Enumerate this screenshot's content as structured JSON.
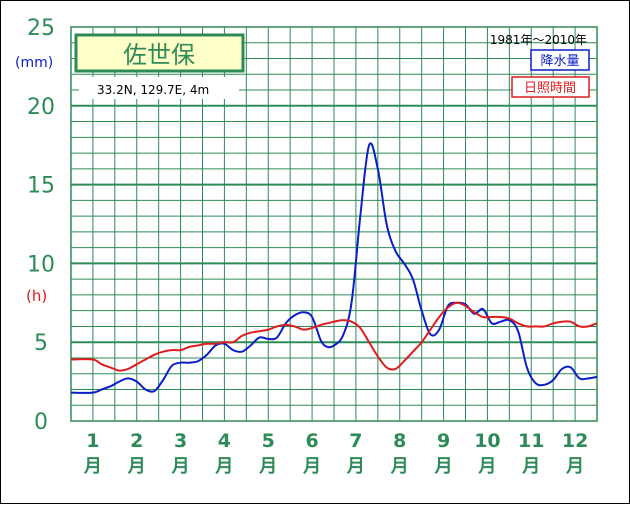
{
  "chart_data": {
    "type": "line",
    "title": "佐世保",
    "location": "33.2N,  129.7E,  4m",
    "period": "1981年〜2010年",
    "ylabel_primary": "(mm)",
    "ylabel_secondary": "(h)",
    "yticks": [
      "0",
      "5",
      "10",
      "15",
      "20",
      "25"
    ],
    "ylim": [
      0,
      25
    ],
    "grid": true,
    "legend_position": "top-right",
    "categories": [
      "1",
      "2",
      "3",
      "4",
      "5",
      "6",
      "7",
      "8",
      "9",
      "10",
      "11",
      "12"
    ],
    "month_suffix": "月",
    "colors": {
      "grid": "#2e8b57",
      "axis_text": "#2e8b57",
      "precip": "#0a1ec8",
      "sunshine": "#dc1e1e",
      "title_box_bg": "#ffffc8",
      "title_box_border": "#2e8b57"
    },
    "series": [
      {
        "name": "降水量",
        "color": "#0a1ec8",
        "x": [
          1.0,
          1.2,
          1.4,
          1.6,
          1.8,
          2.0,
          2.2,
          2.4,
          2.6,
          2.8,
          3.0,
          3.2,
          3.4,
          3.6,
          3.8,
          4.0,
          4.2,
          4.4,
          4.6,
          4.8,
          5.0,
          5.2,
          5.4,
          5.6,
          5.8,
          6.0,
          6.2,
          6.35,
          6.5,
          6.7,
          6.9,
          7.1,
          7.3,
          7.5,
          7.7,
          7.9,
          8.1,
          8.3,
          8.5,
          8.7,
          8.9,
          9.1,
          9.3,
          9.5,
          9.7,
          9.9,
          10.1,
          10.3,
          10.5,
          10.7,
          10.9,
          11.1,
          11.3,
          11.5,
          11.7,
          11.9,
          12.1,
          12.3,
          12.5
        ],
        "values": [
          1.8,
          2.0,
          2.2,
          2.5,
          2.7,
          2.5,
          2.0,
          1.9,
          2.6,
          3.5,
          3.7,
          3.7,
          3.8,
          4.2,
          4.8,
          4.9,
          4.5,
          4.4,
          4.8,
          5.3,
          5.2,
          5.3,
          6.2,
          6.7,
          6.9,
          6.6,
          5.1,
          4.7,
          4.8,
          5.4,
          7.5,
          13.0,
          17.5,
          16.0,
          12.5,
          10.8,
          10.0,
          9.0,
          7.0,
          5.5,
          5.8,
          7.3,
          7.5,
          7.4,
          6.8,
          7.1,
          6.2,
          6.3,
          6.4,
          5.7,
          3.4,
          2.4,
          2.3,
          2.6,
          3.3,
          3.4,
          2.7,
          2.7,
          2.8
        ]
      },
      {
        "name": "日照時間",
        "color": "#dc1e1e",
        "x": [
          1.0,
          1.2,
          1.4,
          1.6,
          1.8,
          2.0,
          2.2,
          2.4,
          2.6,
          2.8,
          3.0,
          3.2,
          3.4,
          3.6,
          3.8,
          4.0,
          4.2,
          4.4,
          4.6,
          4.8,
          5.0,
          5.2,
          5.4,
          5.6,
          5.8,
          6.0,
          6.2,
          6.35,
          6.5,
          6.7,
          6.9,
          7.1,
          7.3,
          7.5,
          7.7,
          7.9,
          8.1,
          8.3,
          8.5,
          8.7,
          8.9,
          9.1,
          9.3,
          9.5,
          9.7,
          9.9,
          10.1,
          10.3,
          10.5,
          10.7,
          10.9,
          11.1,
          11.3,
          11.5,
          11.7,
          11.9,
          12.1,
          12.3,
          12.5
        ],
        "values": [
          3.9,
          3.6,
          3.4,
          3.2,
          3.3,
          3.6,
          3.9,
          4.2,
          4.4,
          4.5,
          4.5,
          4.7,
          4.8,
          4.9,
          4.9,
          5.0,
          5.0,
          5.4,
          5.6,
          5.7,
          5.8,
          6.0,
          6.1,
          6.0,
          5.8,
          5.9,
          6.1,
          6.2,
          6.3,
          6.4,
          6.3,
          5.9,
          5.0,
          4.1,
          3.4,
          3.3,
          3.8,
          4.4,
          5.0,
          5.8,
          6.6,
          7.2,
          7.5,
          7.3,
          6.9,
          6.6,
          6.6,
          6.6,
          6.5,
          6.2,
          6.0,
          6.0,
          6.0,
          6.2,
          6.3,
          6.3,
          6.0,
          6.0,
          6.2
        ]
      }
    ]
  }
}
